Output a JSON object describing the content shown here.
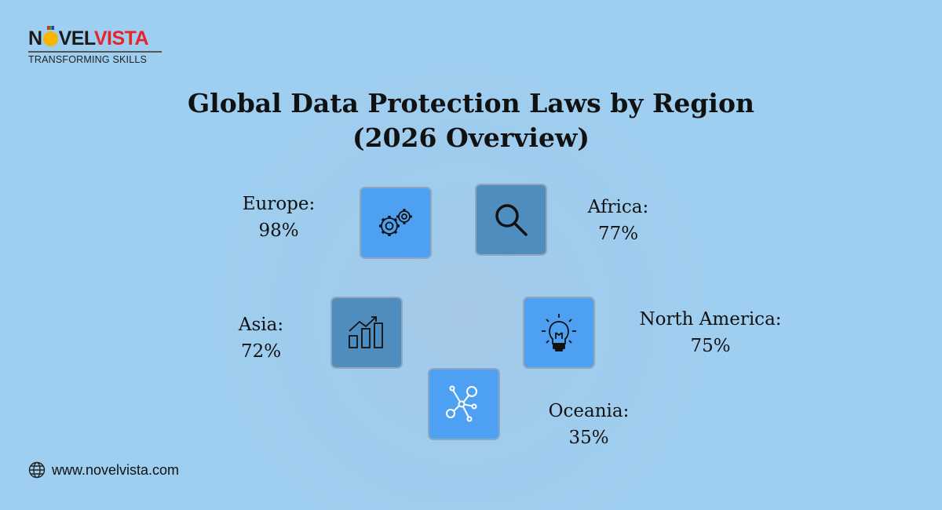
{
  "brand": {
    "logo_part1": "N",
    "logo_part2": "VEL",
    "logo_part3": "VISTA",
    "tagline": "TRANSFORMING SKILLS"
  },
  "title_line1": "Global Data Protection Laws by Region",
  "title_line2": "(2026 Overview)",
  "regions": [
    {
      "name": "Europe:",
      "value": "98%",
      "icon": "gears-icon"
    },
    {
      "name": "Africa:",
      "value": "77%",
      "icon": "magnifier-icon"
    },
    {
      "name": "Asia:",
      "value": "72%",
      "icon": "bar-chart-icon"
    },
    {
      "name": "North America:",
      "value": "75%",
      "icon": "lightbulb-icon"
    },
    {
      "name": "Oceania:",
      "value": "35%",
      "icon": "network-icon"
    }
  ],
  "footer": {
    "website": "www.novelvista.com",
    "icon": "globe-icon"
  },
  "colors": {
    "background": "#9ecff1",
    "box_light": "#4ea1f2",
    "box_dark": "#4f8dbf",
    "brand_red": "#e8232a"
  }
}
